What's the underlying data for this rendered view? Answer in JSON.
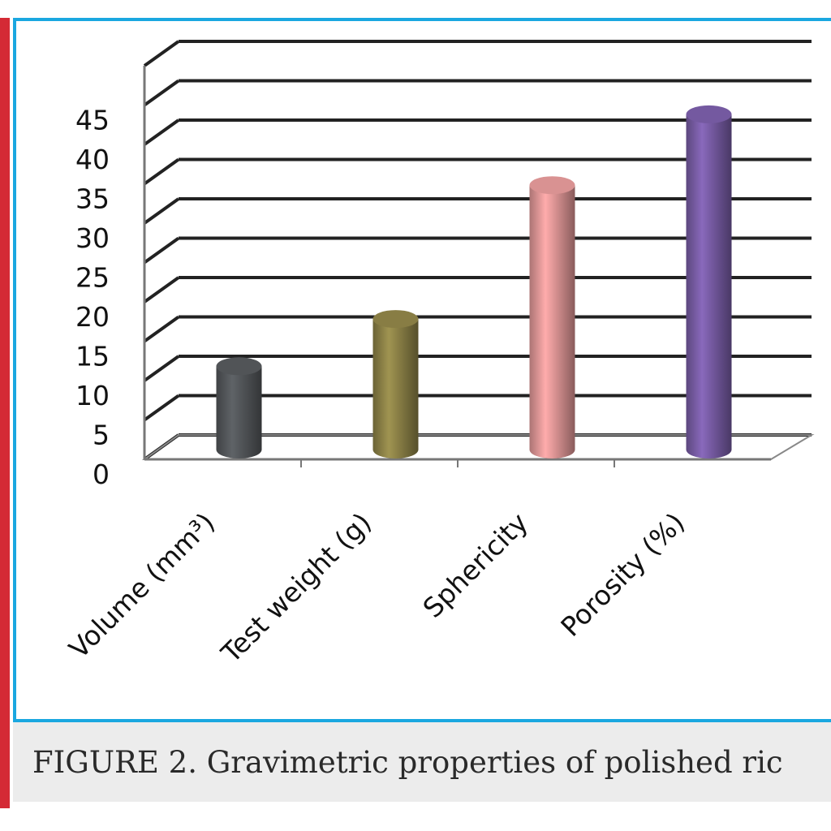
{
  "chart_data": {
    "type": "bar",
    "style": "3d-cylinder",
    "categories": [
      "Volume (mm³)",
      "Test weight (g)",
      "Sphericity",
      "Porosity (%)"
    ],
    "values": [
      11,
      17,
      34,
      43
    ],
    "bar_colors": [
      "#55585c",
      "#8f8448",
      "#e49a9a",
      "#7a5ea8"
    ],
    "yticks": [
      "0",
      "5",
      "10",
      "15",
      "20",
      "25",
      "30",
      "35",
      "40",
      "45"
    ],
    "ylim": [
      0,
      45
    ],
    "grid": true,
    "legend": "none"
  },
  "caption": "FIGURE 2. Gravimetric properties of polished ric",
  "colors": {
    "frame": "#1aa7e0",
    "side_bar": "#d42a35",
    "caption_background": "#ececec",
    "axis_text": "#111111"
  }
}
